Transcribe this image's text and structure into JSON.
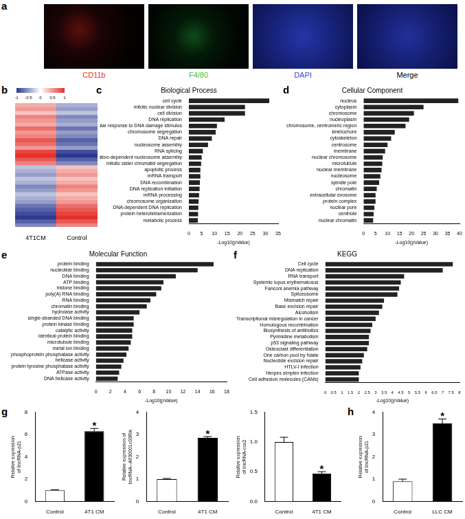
{
  "images": {
    "panel": "a",
    "channels": [
      {
        "label": "CD11b",
        "color": "#e8302a"
      },
      {
        "label": "F4/80",
        "color": "#3ec23e"
      },
      {
        "label": "DAPI",
        "color": "#3b4ccf"
      },
      {
        "label": "Merge",
        "color": "#000000"
      }
    ]
  },
  "chart_data": [
    {
      "panel": "b",
      "type": "heatmap",
      "categories": [
        "4T1CM",
        "Control"
      ],
      "cells": [
        [
          0.4,
          -0.4
        ],
        [
          0.5,
          -0.5
        ],
        [
          0.3,
          -0.3
        ],
        [
          0.6,
          -0.6
        ],
        [
          0.5,
          -0.5
        ],
        [
          0.4,
          -0.4
        ],
        [
          0.7,
          -0.7
        ],
        [
          0.5,
          -0.5
        ],
        [
          0.6,
          -0.6
        ],
        [
          0.8,
          -0.8
        ],
        [
          0.7,
          -0.7
        ],
        [
          0.5,
          -0.5
        ],
        [
          0.9,
          -0.9
        ],
        [
          1.0,
          -1.0
        ],
        [
          0.8,
          -0.8
        ],
        [
          0.6,
          -0.6
        ],
        [
          -0.3,
          0.3
        ],
        [
          -0.4,
          0.4
        ],
        [
          -0.5,
          0.5
        ],
        [
          -0.3,
          0.3
        ],
        [
          -0.4,
          0.4
        ],
        [
          -0.6,
          0.6
        ],
        [
          -0.5,
          0.5
        ],
        [
          -0.3,
          0.3
        ],
        [
          -0.4,
          0.4
        ],
        [
          -0.5,
          0.5
        ],
        [
          -0.7,
          0.7
        ],
        [
          -0.8,
          0.8
        ],
        [
          -0.9,
          0.9
        ],
        [
          -1.0,
          1.0
        ],
        [
          -0.8,
          0.8
        ],
        [
          -0.6,
          0.6
        ]
      ],
      "color_range": [
        -1,
        1
      ],
      "color_ticks": [
        -1,
        -0.5,
        0,
        0.5,
        1
      ],
      "tick_labels": "x",
      "grid": false
    },
    {
      "panel": "c",
      "type": "bar",
      "orientation": "horizontal",
      "title": "Biological Process",
      "x_label": "-Log10(pValue)",
      "categories": [
        "cell cycle",
        "mitotic nuclear division",
        "cell division",
        "DNA replication",
        "cellular response to DNA damage stimulus",
        "chromosome segregation",
        "DNA repair",
        "nucleosome assembly",
        "RNA splicing",
        "DNA replication-dependent nucleosome assembly",
        "mitotic sister chromatid segregation",
        "apoptotic process",
        "mRNA transport",
        "DNA recombination",
        "DNA replication initiation",
        "mRNA processing",
        "chromosome organization",
        "DNA-dependent DNA replication",
        "protein heterotetramerization",
        "metabolic process"
      ],
      "values": [
        31.5,
        22,
        22,
        14,
        11,
        10.5,
        9,
        7.5,
        5.5,
        5,
        4.8,
        4.5,
        4.5,
        4.3,
        4.2,
        4,
        3.8,
        3.7,
        3.6,
        3.5
      ],
      "color": "#222222",
      "xlim": [
        0,
        35
      ],
      "xticks": [
        0,
        5,
        10,
        15,
        20,
        25,
        30,
        35
      ],
      "grid": false
    },
    {
      "panel": "d",
      "type": "bar",
      "orientation": "horizontal",
      "title": "Cellular Component",
      "x_label": "-Log10(pValue)",
      "categories": [
        "nucleus",
        "cytoplasm",
        "chromosome",
        "nucleoplasm",
        "chromosome, centromeric region",
        "kinetochore",
        "cytoskeleton",
        "centrosome",
        "membrane",
        "nuclear chromosome",
        "microtubule",
        "nuclear membrane",
        "nucleosome",
        "spindle pole",
        "chromatin",
        "extracellular exosome",
        "protein complex",
        "nuclear pore",
        "centriole",
        "nuclear chromatin"
      ],
      "values": [
        39.5,
        25,
        21,
        19,
        17.5,
        13,
        11.5,
        10,
        9,
        8,
        7.8,
        7.5,
        7,
        6.5,
        5.5,
        5,
        5,
        4.5,
        4.2,
        4
      ],
      "color": "#222222",
      "xlim": [
        0,
        40
      ],
      "xticks": [
        0,
        5,
        10,
        15,
        20,
        25,
        30,
        35,
        40
      ],
      "grid": false
    },
    {
      "panel": "e",
      "type": "bar",
      "orientation": "horizontal",
      "title": "Molecular Function",
      "x_label": "-Log10(pValue)",
      "categories": [
        "protein binding",
        "nucleotide binding",
        "DNA binding",
        "ATP binding",
        "histone binding",
        "poly(A) RNA binding",
        "RNA binding",
        "chromatin binding",
        "hydrolase activity",
        "single-stranded DNA binding",
        "protein kinase binding",
        "catalytic activity",
        "identical protein binding",
        "microtubule binding",
        "metal ion binding",
        "phosphoprotein phosphatase activity",
        "helicase activity",
        "protein tyrosine phosphatase activity",
        "ATPase activity",
        "DNA helicase activity"
      ],
      "values": [
        16.2,
        14,
        11,
        9.3,
        9,
        8.3,
        7.5,
        7,
        6,
        5.2,
        5.2,
        5,
        5,
        4.8,
        4.5,
        4.2,
        3.8,
        3.5,
        3.2,
        3
      ],
      "color": "#222222",
      "xlim": [
        0,
        18
      ],
      "xticks": [
        0,
        2,
        4,
        6,
        8,
        10,
        12,
        14,
        16,
        18
      ],
      "grid": false
    },
    {
      "panel": "f",
      "type": "bar",
      "orientation": "horizontal",
      "title": "KEGG",
      "x_label": "-Log10(pValue)",
      "categories": [
        "Cell cycle",
        "DNA replication",
        "RNA transport",
        "Systemic lupus erythematosus",
        "Fanconi anemia pathway",
        "Spliceosome",
        "Mismatch repair",
        "Base excision repair",
        "Alcoholism",
        "Transcriptional misregulation in cancer",
        "Homologous recombination",
        "Biosynthesis of antibiotics",
        "Pyrimidine metabolism",
        "p53 signaling pathway",
        "Osteoclast differentiation",
        "One carbon pool by folate",
        "Nucleotide excision repair",
        "HTLV-I infection",
        "Herpes simplex infection",
        "Cell adhesion molecules (CAMs)"
      ],
      "values": [
        7.6,
        7,
        4.7,
        4.5,
        4.4,
        4.3,
        3.5,
        3.4,
        3.2,
        3,
        2.8,
        2.7,
        2.6,
        2.6,
        2.5,
        2.3,
        2.2,
        2.1,
        2,
        2
      ],
      "color": "#222222",
      "xlim": [
        0,
        8
      ],
      "xticks": [
        0,
        0.5,
        1,
        1.5,
        2,
        2.5,
        3,
        3.5,
        4,
        4.5,
        5,
        5.5,
        6,
        6.5,
        7,
        7.5,
        8
      ],
      "grid": false
    },
    {
      "panel": "g",
      "type": "bar",
      "y_label": [
        "Relative expression",
        "of lincRNA-p21"
      ],
      "categories": [
        "Control",
        "4T1 CM"
      ],
      "values": [
        1,
        6.3
      ],
      "errors": [
        0.05,
        0.25
      ],
      "colors": [
        "#ffffff",
        "#000000"
      ],
      "ylim": [
        0,
        8
      ],
      "yticks": [
        0,
        2,
        4,
        6,
        8
      ],
      "grid": false,
      "annotations": [
        {
          "category": "4T1 CM",
          "text": "*"
        }
      ]
    },
    {
      "type": "bar",
      "y_label": [
        "Relative expression of",
        "lincRNA--A930001c03Rik"
      ],
      "categories": [
        "Control",
        "4T1 CM"
      ],
      "values": [
        1,
        2.85
      ],
      "errors": [
        0.03,
        0.06
      ],
      "colors": [
        "#ffffff",
        "#000000"
      ],
      "ylim": [
        0,
        4
      ],
      "yticks": [
        0,
        1,
        2,
        3,
        4
      ],
      "grid": false,
      "annotations": [
        {
          "category": "4T1 CM",
          "text": "*"
        }
      ]
    },
    {
      "type": "bar",
      "y_label": [
        "Relative expression",
        "of lincRNA-cox2"
      ],
      "categories": [
        "Control",
        "4T1 CM"
      ],
      "values": [
        1.0,
        0.47
      ],
      "errors": [
        0.08,
        0.03
      ],
      "colors": [
        "#ffffff",
        "#000000"
      ],
      "ylim": [
        0,
        1.5
      ],
      "yticks": [
        {
          "value": 0,
          "label": "0.0"
        },
        {
          "value": 0.5,
          "label": "0.5"
        },
        {
          "value": 1,
          "label": "1.0"
        },
        {
          "value": 1.5,
          "label": "1.5"
        }
      ],
      "grid": false,
      "annotations": [
        {
          "category": "4T1 CM",
          "text": "*"
        }
      ]
    },
    {
      "panel": "h",
      "type": "bar",
      "y_label": [
        "Relative expression",
        "of lincRNA-p21"
      ],
      "categories": [
        "Control",
        "LLC CM"
      ],
      "values": [
        0.9,
        3.5
      ],
      "errors": [
        0.1,
        0.2
      ],
      "colors": [
        "#ffffff",
        "#000000"
      ],
      "ylim": [
        0,
        4
      ],
      "yticks": [
        0,
        1,
        2,
        3,
        4
      ],
      "grid": false,
      "annotations": [
        {
          "category": "LLC CM",
          "text": "*"
        }
      ]
    }
  ]
}
